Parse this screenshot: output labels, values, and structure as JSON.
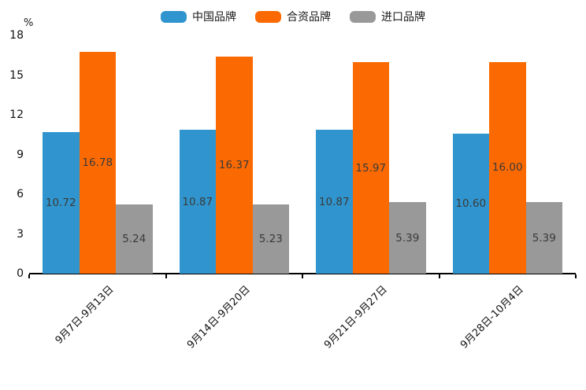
{
  "chart": {
    "y_unit_label": "%"
  },
  "chart_data": {
    "type": "bar",
    "title": "",
    "xlabel": "",
    "ylabel": "%",
    "categories": [
      "9月7日-9月13日",
      "9月14日-9月20日",
      "9月21日-9月27日",
      "9月28日-10月4日"
    ],
    "series": [
      {
        "name": "中国品牌",
        "color": "#3095CE",
        "values": [
          10.72,
          10.87,
          10.87,
          10.6
        ]
      },
      {
        "name": "合资品牌",
        "color": "#FB6A02",
        "values": [
          16.78,
          16.37,
          15.97,
          16.0
        ]
      },
      {
        "name": "进口品牌",
        "color": "#999999",
        "values": [
          5.24,
          5.23,
          5.39,
          5.39
        ]
      }
    ],
    "value_label_decimals": 2,
    "ylim": [
      0,
      18
    ],
    "yticks": [
      0,
      3,
      6,
      9,
      12,
      15,
      18
    ],
    "grid": false,
    "legend_position": "top-center",
    "bar_gap_within_group": 0,
    "x_tick_label_rotation_deg": 45
  }
}
